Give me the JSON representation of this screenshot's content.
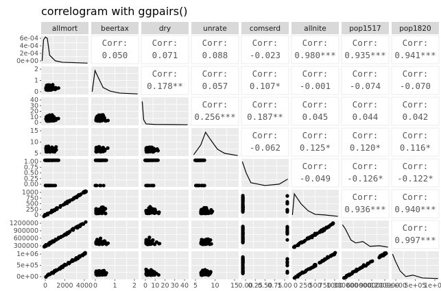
{
  "chart_data": {
    "type": "scatter",
    "title": "correlogram with ggpairs()",
    "variables": [
      "allmort",
      "beertax",
      "dry",
      "unrate",
      "comserd",
      "allnite",
      "pop1517",
      "pop1820"
    ],
    "corr_label": "Corr:",
    "correlations": [
      {
        "row": 0,
        "col": 1,
        "text": "0.050"
      },
      {
        "row": 0,
        "col": 2,
        "text": "0.071"
      },
      {
        "row": 0,
        "col": 3,
        "text": "0.088"
      },
      {
        "row": 0,
        "col": 4,
        "text": "-0.023"
      },
      {
        "row": 0,
        "col": 5,
        "text": "0.980***"
      },
      {
        "row": 0,
        "col": 6,
        "text": "0.935***"
      },
      {
        "row": 0,
        "col": 7,
        "text": "0.941***"
      },
      {
        "row": 1,
        "col": 2,
        "text": "0.178**"
      },
      {
        "row": 1,
        "col": 3,
        "text": "0.057"
      },
      {
        "row": 1,
        "col": 4,
        "text": "0.107*"
      },
      {
        "row": 1,
        "col": 5,
        "text": "-0.001"
      },
      {
        "row": 1,
        "col": 6,
        "text": "-0.074"
      },
      {
        "row": 1,
        "col": 7,
        "text": "-0.070"
      },
      {
        "row": 2,
        "col": 3,
        "text": "0.256***"
      },
      {
        "row": 2,
        "col": 4,
        "text": "0.187**"
      },
      {
        "row": 2,
        "col": 5,
        "text": "0.045"
      },
      {
        "row": 2,
        "col": 6,
        "text": "0.044"
      },
      {
        "row": 2,
        "col": 7,
        "text": "0.042"
      },
      {
        "row": 3,
        "col": 4,
        "text": "-0.062"
      },
      {
        "row": 3,
        "col": 5,
        "text": "0.125*"
      },
      {
        "row": 3,
        "col": 6,
        "text": "0.120*"
      },
      {
        "row": 3,
        "col": 7,
        "text": "0.116*"
      },
      {
        "row": 4,
        "col": 5,
        "text": "-0.049"
      },
      {
        "row": 4,
        "col": 6,
        "text": "-0.126*"
      },
      {
        "row": 4,
        "col": 7,
        "text": "-0.122*"
      },
      {
        "row": 5,
        "col": 6,
        "text": "0.936***"
      },
      {
        "row": 5,
        "col": 7,
        "text": "0.940***"
      },
      {
        "row": 6,
        "col": 7,
        "text": "0.997***"
      }
    ],
    "y_axis_ticks": [
      {
        "row": 0,
        "labels": [
          "6e-04",
          "4e-04",
          "2e-04",
          "0e+00"
        ],
        "values": [
          0.0006,
          0.0004,
          0.0002,
          0
        ]
      },
      {
        "row": 1,
        "labels": [
          "2",
          "1",
          "0"
        ],
        "values": [
          2,
          1,
          0
        ]
      },
      {
        "row": 2,
        "labels": [
          "40",
          "30",
          "20",
          "10",
          "0"
        ],
        "values": [
          40,
          30,
          20,
          10,
          0
        ]
      },
      {
        "row": 3,
        "labels": [
          "15",
          "10",
          "5"
        ],
        "values": [
          15,
          10,
          5
        ]
      },
      {
        "row": 4,
        "labels": [
          "1.00",
          "0.75",
          "0.50",
          "0.25",
          "0.00"
        ],
        "values": [
          1,
          0.75,
          0.5,
          0.25,
          0
        ]
      },
      {
        "row": 5,
        "labels": [
          "1000",
          "750",
          "500",
          "250",
          "0"
        ],
        "values": [
          1000,
          750,
          500,
          250,
          0
        ]
      },
      {
        "row": 6,
        "labels": [
          "1200000",
          "900000",
          "600000",
          "300000"
        ],
        "values": [
          1200000,
          900000,
          600000,
          300000
        ]
      },
      {
        "row": 7,
        "labels": [
          "1e+06",
          "5e+05",
          "0e+00"
        ],
        "values": [
          1000000,
          500000,
          0
        ]
      }
    ],
    "x_axis_ticks": [
      {
        "col": 0,
        "labels": [
          "0",
          "2000",
          "4000"
        ]
      },
      {
        "col": 1,
        "labels": [
          "0",
          "1",
          "2"
        ]
      },
      {
        "col": 2,
        "labels": [
          "0",
          "10",
          "20",
          "30",
          "40"
        ]
      },
      {
        "col": 3,
        "labels": [
          "5",
          "10",
          "15"
        ]
      },
      {
        "col": 4,
        "labels": [
          "0.00",
          "0.25",
          "0.50",
          "0.75",
          "1.00"
        ]
      },
      {
        "col": 5,
        "labels": [
          "0",
          "250",
          "500",
          "750",
          "1000"
        ]
      },
      {
        "col": 6,
        "labels": [
          "300000",
          "600000",
          "900000",
          "1200000"
        ]
      },
      {
        "col": 7,
        "labels": [
          "0e+00",
          "5e+05",
          "1e+06"
        ]
      }
    ],
    "grid": true,
    "colors": {
      "panel": "#ebebeb",
      "grid": "#ffffff",
      "strip": "#d9d9d9",
      "points": "#000000",
      "text": "#595959"
    }
  }
}
